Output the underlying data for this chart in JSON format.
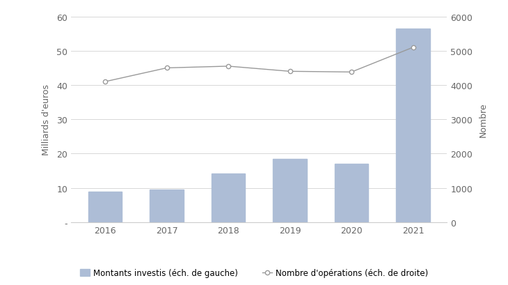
{
  "years": [
    2016,
    2017,
    2018,
    2019,
    2020,
    2021
  ],
  "bar_values": [
    9.0,
    9.5,
    14.2,
    18.5,
    17.0,
    56.5
  ],
  "line_values": [
    4100,
    4500,
    4550,
    4400,
    4380,
    5100
  ],
  "bar_color": "#adbdd6",
  "bar_edgecolor": "#adbdd6",
  "line_color": "#999999",
  "marker_facecolor": "#ffffff",
  "marker_edgecolor": "#999999",
  "ylabel_left": "Milliards d'euros",
  "ylabel_right": "Nombre",
  "ylim_left": [
    0,
    60
  ],
  "ylim_right": [
    0,
    6000
  ],
  "yticks_left": [
    0,
    10,
    20,
    30,
    40,
    50,
    60
  ],
  "ytick_labels_left": [
    "-",
    "10",
    "20",
    "30",
    "40",
    "50",
    "60"
  ],
  "yticks_right": [
    0,
    1000,
    2000,
    3000,
    4000,
    5000,
    6000
  ],
  "legend_bar_label": "Montants investis (éch. de gauche)",
  "legend_line_label": "Nombre d'opérations (éch. de droite)",
  "grid_color": "#d8d8d8",
  "background_color": "#ffffff",
  "tick_fontsize": 9,
  "ylabel_fontsize": 9,
  "legend_fontsize": 8.5
}
